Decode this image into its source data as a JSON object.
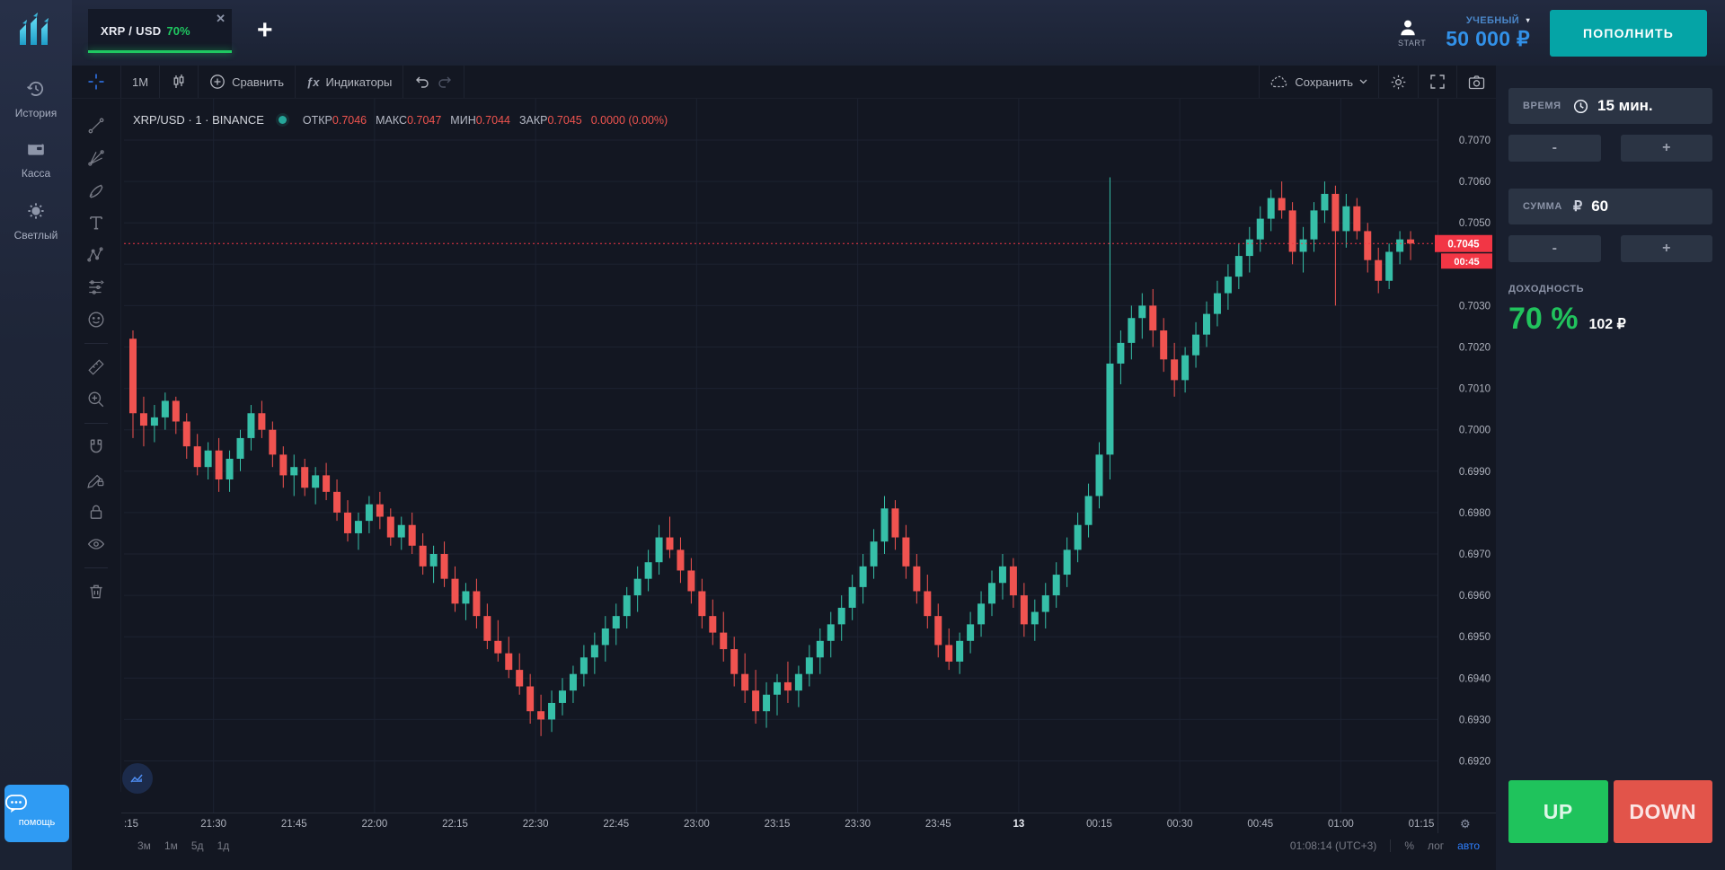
{
  "header": {
    "tab": {
      "symbol": "XRP / USD",
      "payout": "70%",
      "close": "✕"
    },
    "add_tab": "+",
    "user": {
      "label": "START"
    },
    "account": {
      "type": "УЧЕБНЫЙ",
      "chevron": "▾",
      "balance": "50 000 ₽"
    },
    "deposit_label": "ПОПОЛНИТЬ"
  },
  "sidebar": {
    "items": [
      {
        "label": "История"
      },
      {
        "label": "Касса"
      },
      {
        "label": "Светлый"
      }
    ],
    "help_label": "помощь"
  },
  "chart": {
    "toolbar": {
      "interval": "1M",
      "compare": "Сравнить",
      "indicators": "Индикаторы",
      "indicators_fx": "ƒx",
      "save": "Сохранить"
    },
    "legend": {
      "title": "XRP/USD · 1 · BINANCE",
      "open_label": "ОТКР",
      "open": "0.7046",
      "high_label": "МАКС",
      "high": "0.7047",
      "low_label": "МИН",
      "low": "0.7044",
      "close_label": "ЗАКР",
      "close": "0.7045",
      "change": "0.0000 (0.00%)"
    },
    "bottom": {
      "ranges": [
        "3м",
        "1м",
        "5д",
        "1д"
      ],
      "clock": "01:08:14 (UTC+3)",
      "percent": "%",
      "log": "лог",
      "auto": "авто"
    }
  },
  "trade_panel": {
    "time": {
      "label": "ВРЕМЯ",
      "value": "15 мин."
    },
    "amount": {
      "label": "СУММА",
      "currency": "₽",
      "value": "60"
    },
    "profit": {
      "label": "ДОХОДНОСТЬ",
      "percent": "70 %",
      "payout": "102 ₽"
    },
    "minus": "-",
    "plus": "+",
    "up_label": "UP",
    "down_label": "DOWN"
  },
  "colors": {
    "up_candle": "#36bfa8",
    "down_candle": "#f05350",
    "price_label_bg": "#f23645",
    "up_button": "#1fc35c",
    "down_button": "#e2544a",
    "accent_teal": "#05a4a6",
    "balance_blue": "#3291e8",
    "payout_green": "#21c35d",
    "help_blue": "#2f9bf3",
    "tab_green": "#1fc861",
    "auto_blue": "#2e7fff",
    "crosshair_blue": "#3179f5"
  },
  "chart_data": {
    "type": "candlestick",
    "title": "XRP/USD · 1 · BINANCE",
    "symbol": "XRP/USD",
    "exchange": "BINANCE",
    "interval_minutes": 1,
    "ohlc_current": {
      "open": 0.7046,
      "high": 0.7047,
      "low": 0.7044,
      "close": 0.7045,
      "change": "0.0000 (0.00%)"
    },
    "current_price": 0.7045,
    "price_label": "0.7045",
    "countdown": "00:45",
    "ylim": [
      0.691,
      0.7078
    ],
    "price_unit": 0.0001,
    "candle_minutes": 2,
    "x_start": "21:15",
    "x_end": "01:15",
    "price_scale_ticks": [
      "0.7070",
      "0.7060",
      "0.7050",
      "0.7040",
      "0.7030",
      "0.7020",
      "0.7010",
      "0.7000",
      "0.6990",
      "0.6980",
      "0.6970",
      "0.6960",
      "0.6950",
      "0.6940",
      "0.6930",
      "0.6920"
    ],
    "time_axis_labels": [
      {
        "m": 0,
        "label": ":15"
      },
      {
        "m": 15,
        "label": "21:30"
      },
      {
        "m": 30,
        "label": "21:45"
      },
      {
        "m": 45,
        "label": "22:00"
      },
      {
        "m": 60,
        "label": "22:15"
      },
      {
        "m": 75,
        "label": "22:30"
      },
      {
        "m": 90,
        "label": "22:45"
      },
      {
        "m": 105,
        "label": "23:00"
      },
      {
        "m": 120,
        "label": "23:15"
      },
      {
        "m": 135,
        "label": "23:30"
      },
      {
        "m": 150,
        "label": "23:45"
      },
      {
        "m": 165,
        "label": "13",
        "strong": true
      },
      {
        "m": 180,
        "label": "00:15"
      },
      {
        "m": 195,
        "label": "00:30"
      },
      {
        "m": 210,
        "label": "00:45"
      },
      {
        "m": 225,
        "label": "01:00"
      },
      {
        "m": 240,
        "label": "01:15"
      }
    ],
    "grid_vertical_minutes": [
      15,
      45,
      75,
      105,
      135,
      165,
      195,
      225
    ],
    "candles": [
      [
        7022,
        7024,
        6998,
        7004
      ],
      [
        7004,
        7008,
        6996,
        7001
      ],
      [
        7001,
        7006,
        6997,
        7003
      ],
      [
        7003,
        7009,
        7000,
        7007
      ],
      [
        7007,
        7008,
        6999,
        7002
      ],
      [
        7002,
        7004,
        6993,
        6996
      ],
      [
        6996,
        6999,
        6989,
        6991
      ],
      [
        6991,
        6997,
        6988,
        6995
      ],
      [
        6995,
        6998,
        6985,
        6988
      ],
      [
        6988,
        6995,
        6985,
        6993
      ],
      [
        6993,
        7000,
        6990,
        6998
      ],
      [
        6998,
        7006,
        6995,
        7004
      ],
      [
        7004,
        7007,
        6998,
        7000
      ],
      [
        7000,
        7002,
        6991,
        6994
      ],
      [
        6994,
        6996,
        6986,
        6989
      ],
      [
        6989,
        6994,
        6984,
        6991
      ],
      [
        6991,
        6993,
        6984,
        6986
      ],
      [
        6986,
        6991,
        6982,
        6989
      ],
      [
        6989,
        6992,
        6983,
        6985
      ],
      [
        6985,
        6988,
        6978,
        6980
      ],
      [
        6980,
        6983,
        6973,
        6975
      ],
      [
        6975,
        6980,
        6971,
        6978
      ],
      [
        6978,
        6984,
        6975,
        6982
      ],
      [
        6982,
        6985,
        6976,
        6979
      ],
      [
        6979,
        6981,
        6972,
        6974
      ],
      [
        6974,
        6979,
        6971,
        6977
      ],
      [
        6977,
        6980,
        6970,
        6972
      ],
      [
        6972,
        6975,
        6965,
        6967
      ],
      [
        6967,
        6972,
        6963,
        6970
      ],
      [
        6970,
        6973,
        6962,
        6964
      ],
      [
        6964,
        6967,
        6956,
        6958
      ],
      [
        6958,
        6963,
        6954,
        6961
      ],
      [
        6961,
        6964,
        6952,
        6955
      ],
      [
        6955,
        6958,
        6947,
        6949
      ],
      [
        6949,
        6954,
        6944,
        6946
      ],
      [
        6946,
        6950,
        6940,
        6942
      ],
      [
        6942,
        6946,
        6936,
        6938
      ],
      [
        6938,
        6941,
        6929,
        6932
      ],
      [
        6932,
        6936,
        6926,
        6930
      ],
      [
        6930,
        6937,
        6927,
        6934
      ],
      [
        6934,
        6940,
        6931,
        6937
      ],
      [
        6937,
        6943,
        6934,
        6941
      ],
      [
        6941,
        6948,
        6938,
        6945
      ],
      [
        6945,
        6951,
        6941,
        6948
      ],
      [
        6948,
        6955,
        6944,
        6952
      ],
      [
        6952,
        6958,
        6948,
        6955
      ],
      [
        6955,
        6962,
        6952,
        6960
      ],
      [
        6960,
        6967,
        6956,
        6964
      ],
      [
        6964,
        6971,
        6961,
        6968
      ],
      [
        6968,
        6977,
        6965,
        6974
      ],
      [
        6974,
        6979,
        6969,
        6971
      ],
      [
        6971,
        6974,
        6963,
        6966
      ],
      [
        6966,
        6969,
        6958,
        6961
      ],
      [
        6961,
        6964,
        6952,
        6955
      ],
      [
        6955,
        6959,
        6948,
        6951
      ],
      [
        6951,
        6956,
        6944,
        6947
      ],
      [
        6947,
        6950,
        6938,
        6941
      ],
      [
        6941,
        6946,
        6934,
        6937
      ],
      [
        6937,
        6942,
        6929,
        6932
      ],
      [
        6932,
        6939,
        6928,
        6936
      ],
      [
        6936,
        6941,
        6931,
        6939
      ],
      [
        6939,
        6944,
        6934,
        6937
      ],
      [
        6937,
        6943,
        6933,
        6941
      ],
      [
        6941,
        6948,
        6938,
        6945
      ],
      [
        6945,
        6952,
        6941,
        6949
      ],
      [
        6949,
        6956,
        6945,
        6953
      ],
      [
        6953,
        6960,
        6949,
        6957
      ],
      [
        6957,
        6965,
        6954,
        6962
      ],
      [
        6962,
        6970,
        6958,
        6967
      ],
      [
        6967,
        6976,
        6964,
        6973
      ],
      [
        6973,
        6984,
        6970,
        6981
      ],
      [
        6981,
        6983,
        6971,
        6974
      ],
      [
        6974,
        6977,
        6964,
        6967
      ],
      [
        6967,
        6970,
        6958,
        6961
      ],
      [
        6961,
        6965,
        6952,
        6955
      ],
      [
        6955,
        6958,
        6945,
        6948
      ],
      [
        6948,
        6952,
        6942,
        6944
      ],
      [
        6944,
        6951,
        6941,
        6949
      ],
      [
        6949,
        6956,
        6946,
        6953
      ],
      [
        6953,
        6961,
        6950,
        6958
      ],
      [
        6958,
        6966,
        6955,
        6963
      ],
      [
        6963,
        6970,
        6959,
        6967
      ],
      [
        6967,
        6969,
        6957,
        6960
      ],
      [
        6960,
        6963,
        6950,
        6953
      ],
      [
        6953,
        6959,
        6949,
        6956
      ],
      [
        6956,
        6963,
        6952,
        6960
      ],
      [
        6960,
        6968,
        6957,
        6965
      ],
      [
        6965,
        6974,
        6962,
        6971
      ],
      [
        6971,
        6980,
        6968,
        6977
      ],
      [
        6977,
        6987,
        6974,
        6984
      ],
      [
        6984,
        6997,
        6981,
        6994
      ],
      [
        6994,
        7061,
        6988,
        7016
      ],
      [
        7016,
        7024,
        7011,
        7021
      ],
      [
        7021,
        7030,
        7017,
        7027
      ],
      [
        7027,
        7033,
        7022,
        7030
      ],
      [
        7030,
        7034,
        7020,
        7024
      ],
      [
        7024,
        7027,
        7014,
        7017
      ],
      [
        7017,
        7021,
        7008,
        7012
      ],
      [
        7012,
        7020,
        7009,
        7018
      ],
      [
        7018,
        7026,
        7015,
        7023
      ],
      [
        7023,
        7031,
        7020,
        7028
      ],
      [
        7028,
        7036,
        7025,
        7033
      ],
      [
        7033,
        7040,
        7029,
        7037
      ],
      [
        7037,
        7045,
        7034,
        7042
      ],
      [
        7042,
        7049,
        7038,
        7046
      ],
      [
        7046,
        7054,
        7043,
        7051
      ],
      [
        7051,
        7058,
        7048,
        7056
      ],
      [
        7056,
        7060,
        7051,
        7053
      ],
      [
        7053,
        7055,
        7040,
        7043
      ],
      [
        7043,
        7049,
        7038,
        7046
      ],
      [
        7046,
        7055,
        7043,
        7053
      ],
      [
        7053,
        7060,
        7050,
        7057
      ],
      [
        7057,
        7059,
        7030,
        7048
      ],
      [
        7048,
        7057,
        7044,
        7054
      ],
      [
        7054,
        7056,
        7046,
        7048
      ],
      [
        7048,
        7050,
        7038,
        7041
      ],
      [
        7041,
        7044,
        7033,
        7036
      ],
      [
        7036,
        7045,
        7034,
        7043
      ],
      [
        7043,
        7048,
        7040,
        7046
      ],
      [
        7046,
        7048,
        7041,
        7045
      ]
    ]
  }
}
